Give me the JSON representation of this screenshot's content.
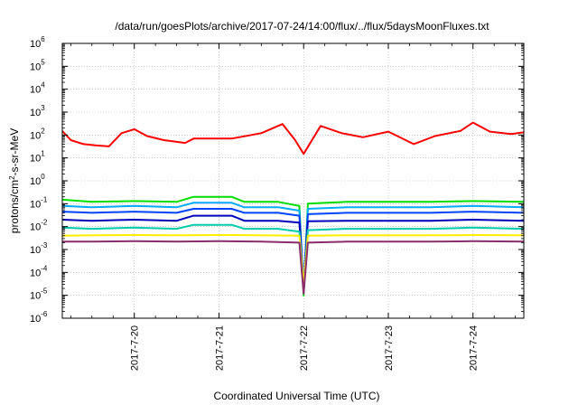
{
  "chart_data": {
    "type": "line",
    "title": "/data/run/goesPlots/archive/2017-07-24/14:00/flux/../flux/5daysMoonFluxes.txt",
    "xlabel": "Coordinated Universal Time (UTC)",
    "ylabel": "protons/cm²-s-sr-MeV",
    "ylabel_parts": {
      "pre": "protons/cm",
      "sup": "2",
      "post": "-s-sr-MeV"
    },
    "y_scale": "log",
    "ylim_exponents": [
      -6,
      6
    ],
    "y_ticks": [
      {
        "base": "10",
        "exp": "-6"
      },
      {
        "base": "10",
        "exp": "-5"
      },
      {
        "base": "10",
        "exp": "-4"
      },
      {
        "base": "10",
        "exp": "-3"
      },
      {
        "base": "10",
        "exp": "-2"
      },
      {
        "base": "10",
        "exp": "-1"
      },
      {
        "base": "10",
        "exp": "0"
      },
      {
        "base": "10",
        "exp": "1"
      },
      {
        "base": "10",
        "exp": "2"
      },
      {
        "base": "10",
        "exp": "3"
      },
      {
        "base": "10",
        "exp": "4"
      },
      {
        "base": "10",
        "exp": "5"
      },
      {
        "base": "10",
        "exp": "6"
      }
    ],
    "xlim_days": [
      19.15,
      24.6
    ],
    "x_ticks": [
      {
        "label": "2017-7-20",
        "day": 20
      },
      {
        "label": "2017-7-21",
        "day": 21
      },
      {
        "label": "2017-7-22",
        "day": 22
      },
      {
        "label": "2017-7-23",
        "day": 23
      },
      {
        "label": "2017-7-24",
        "day": 24
      }
    ],
    "grid": true,
    "legend": false,
    "series": [
      {
        "color": "#ff0000",
        "points": [
          [
            19.15,
            150
          ],
          [
            19.25,
            60
          ],
          [
            19.4,
            40
          ],
          [
            19.55,
            35
          ],
          [
            19.7,
            32
          ],
          [
            19.85,
            120
          ],
          [
            20.0,
            180
          ],
          [
            20.15,
            90
          ],
          [
            20.35,
            60
          ],
          [
            20.6,
            45
          ],
          [
            20.7,
            70
          ],
          [
            21.15,
            70
          ],
          [
            21.5,
            120
          ],
          [
            21.75,
            300
          ],
          [
            21.9,
            60
          ],
          [
            22.0,
            15
          ],
          [
            22.2,
            250
          ],
          [
            22.45,
            120
          ],
          [
            22.7,
            80
          ],
          [
            23.0,
            140
          ],
          [
            23.3,
            40
          ],
          [
            23.55,
            90
          ],
          [
            23.85,
            150
          ],
          [
            24.0,
            350
          ],
          [
            24.2,
            140
          ],
          [
            24.45,
            110
          ],
          [
            24.6,
            130
          ]
        ]
      },
      {
        "color": "#00dd00",
        "points": [
          [
            19.15,
            0.15
          ],
          [
            19.5,
            0.12
          ],
          [
            20.0,
            0.13
          ],
          [
            20.5,
            0.12
          ],
          [
            20.7,
            0.2
          ],
          [
            21.15,
            0.2
          ],
          [
            21.3,
            0.12
          ],
          [
            21.7,
            0.12
          ],
          [
            21.95,
            0.08
          ],
          [
            22.0,
            1e-05
          ],
          [
            22.05,
            0.1
          ],
          [
            22.5,
            0.12
          ],
          [
            23.0,
            0.12
          ],
          [
            23.5,
            0.12
          ],
          [
            24.0,
            0.13
          ],
          [
            24.6,
            0.12
          ]
        ]
      },
      {
        "color": "#00aaff",
        "points": [
          [
            19.15,
            0.08
          ],
          [
            19.5,
            0.07
          ],
          [
            20.0,
            0.08
          ],
          [
            20.5,
            0.07
          ],
          [
            20.7,
            0.11
          ],
          [
            21.15,
            0.11
          ],
          [
            21.3,
            0.07
          ],
          [
            21.7,
            0.07
          ],
          [
            21.95,
            0.05
          ],
          [
            22.0,
            2e-05
          ],
          [
            22.05,
            0.06
          ],
          [
            22.5,
            0.07
          ],
          [
            23.0,
            0.07
          ],
          [
            23.5,
            0.07
          ],
          [
            24.0,
            0.08
          ],
          [
            24.6,
            0.07
          ]
        ]
      },
      {
        "color": "#0044ff",
        "points": [
          [
            19.15,
            0.045
          ],
          [
            19.5,
            0.04
          ],
          [
            20.0,
            0.045
          ],
          [
            20.5,
            0.04
          ],
          [
            20.7,
            0.06
          ],
          [
            21.15,
            0.06
          ],
          [
            21.3,
            0.04
          ],
          [
            21.7,
            0.04
          ],
          [
            21.95,
            0.03
          ],
          [
            22.0,
            2e-05
          ],
          [
            22.05,
            0.035
          ],
          [
            22.5,
            0.04
          ],
          [
            23.0,
            0.04
          ],
          [
            23.5,
            0.04
          ],
          [
            24.0,
            0.045
          ],
          [
            24.6,
            0.04
          ]
        ]
      },
      {
        "color": "#0000bb",
        "points": [
          [
            19.15,
            0.02
          ],
          [
            19.5,
            0.018
          ],
          [
            20.0,
            0.02
          ],
          [
            20.5,
            0.018
          ],
          [
            20.7,
            0.03
          ],
          [
            21.15,
            0.03
          ],
          [
            21.3,
            0.018
          ],
          [
            21.7,
            0.018
          ],
          [
            21.95,
            0.015
          ],
          [
            22.0,
            2e-05
          ],
          [
            22.05,
            0.017
          ],
          [
            22.5,
            0.018
          ],
          [
            23.0,
            0.018
          ],
          [
            23.5,
            0.018
          ],
          [
            24.0,
            0.02
          ],
          [
            24.6,
            0.018
          ]
        ]
      },
      {
        "color": "#00ccaa",
        "points": [
          [
            19.15,
            0.009
          ],
          [
            19.5,
            0.008
          ],
          [
            20.0,
            0.009
          ],
          [
            20.5,
            0.008
          ],
          [
            20.7,
            0.012
          ],
          [
            21.15,
            0.012
          ],
          [
            21.3,
            0.008
          ],
          [
            21.7,
            0.008
          ],
          [
            21.95,
            0.006
          ],
          [
            22.0,
            2e-05
          ],
          [
            22.05,
            0.007
          ],
          [
            22.5,
            0.008
          ],
          [
            23.0,
            0.008
          ],
          [
            23.5,
            0.008
          ],
          [
            24.0,
            0.009
          ],
          [
            24.6,
            0.008
          ]
        ]
      },
      {
        "color": "#ffee00",
        "points": [
          [
            19.15,
            0.004
          ],
          [
            19.5,
            0.0042
          ],
          [
            20.0,
            0.0043
          ],
          [
            20.5,
            0.0042
          ],
          [
            21.0,
            0.0043
          ],
          [
            21.5,
            0.0042
          ],
          [
            21.95,
            0.004
          ],
          [
            22.0,
            3e-05
          ],
          [
            22.05,
            0.004
          ],
          [
            22.5,
            0.0042
          ],
          [
            23.0,
            0.0042
          ],
          [
            23.5,
            0.0042
          ],
          [
            24.0,
            0.0043
          ],
          [
            24.6,
            0.0042
          ]
        ]
      },
      {
        "color": "#8b2c6b",
        "points": [
          [
            19.15,
            0.0022
          ],
          [
            19.5,
            0.0022
          ],
          [
            20.0,
            0.0023
          ],
          [
            20.5,
            0.0022
          ],
          [
            21.0,
            0.0023
          ],
          [
            21.5,
            0.0022
          ],
          [
            21.95,
            0.002
          ],
          [
            22.0,
            1.2e-05
          ],
          [
            22.05,
            0.002
          ],
          [
            22.5,
            0.0022
          ],
          [
            23.0,
            0.0022
          ],
          [
            23.5,
            0.0022
          ],
          [
            24.0,
            0.0023
          ],
          [
            24.6,
            0.0022
          ]
        ]
      }
    ]
  }
}
